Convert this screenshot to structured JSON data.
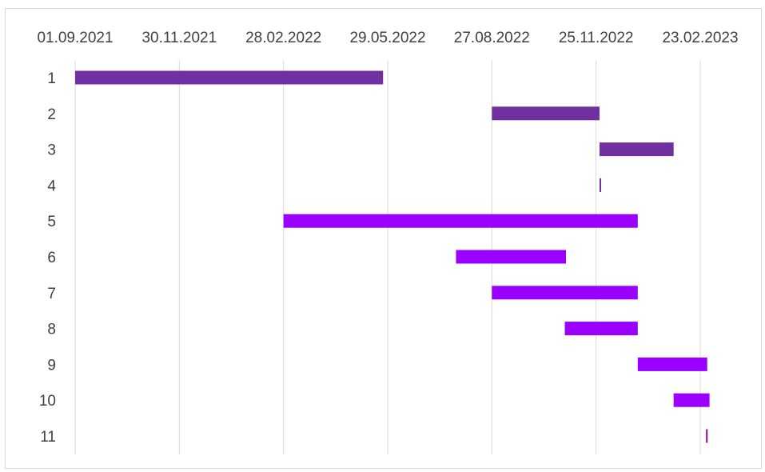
{
  "chart_data": {
    "type": "gantt",
    "x_axis": {
      "position": "top",
      "tick_labels": [
        "01.09.2021",
        "30.11.2021",
        "28.02.2022",
        "29.05.2022",
        "27.08.2022",
        "25.11.2022",
        "23.02.2023"
      ],
      "range": [
        "01.09.2021",
        "23.02.2023"
      ]
    },
    "y_axis": {
      "categories": [
        "1",
        "2",
        "3",
        "4",
        "5",
        "6",
        "7",
        "8",
        "9",
        "10",
        "11"
      ]
    },
    "grid": "vertical",
    "tasks": [
      {
        "category": "1",
        "start": "01.09.2021",
        "end": "25.05.2022",
        "color": "#7030a0"
      },
      {
        "category": "2",
        "start": "27.08.2022",
        "end": "28.11.2022",
        "color": "#7030a0"
      },
      {
        "category": "3",
        "start": "28.11.2022",
        "end": "31.01.2023",
        "color": "#7030a0"
      },
      {
        "category": "4",
        "start": "28.11.2022",
        "end": "29.11.2022",
        "color": "#7030a0"
      },
      {
        "category": "5",
        "start": "28.02.2022",
        "end": "31.12.2022",
        "color": "#9900ff"
      },
      {
        "category": "6",
        "start": "27.07.2022",
        "end": "30.10.2022",
        "color": "#9900ff"
      },
      {
        "category": "7",
        "start": "27.08.2022",
        "end": "31.12.2022",
        "color": "#9900ff"
      },
      {
        "category": "8",
        "start": "29.10.2022",
        "end": "31.12.2022",
        "color": "#9900ff"
      },
      {
        "category": "9",
        "start": "31.12.2022",
        "end": "01.03.2023",
        "color": "#9900ff"
      },
      {
        "category": "10",
        "start": "31.01.2023",
        "end": "03.03.2023",
        "color": "#9900ff"
      },
      {
        "category": "11",
        "start": "28.02.2023",
        "end": "01.03.2023",
        "color": "#990099"
      }
    ]
  }
}
